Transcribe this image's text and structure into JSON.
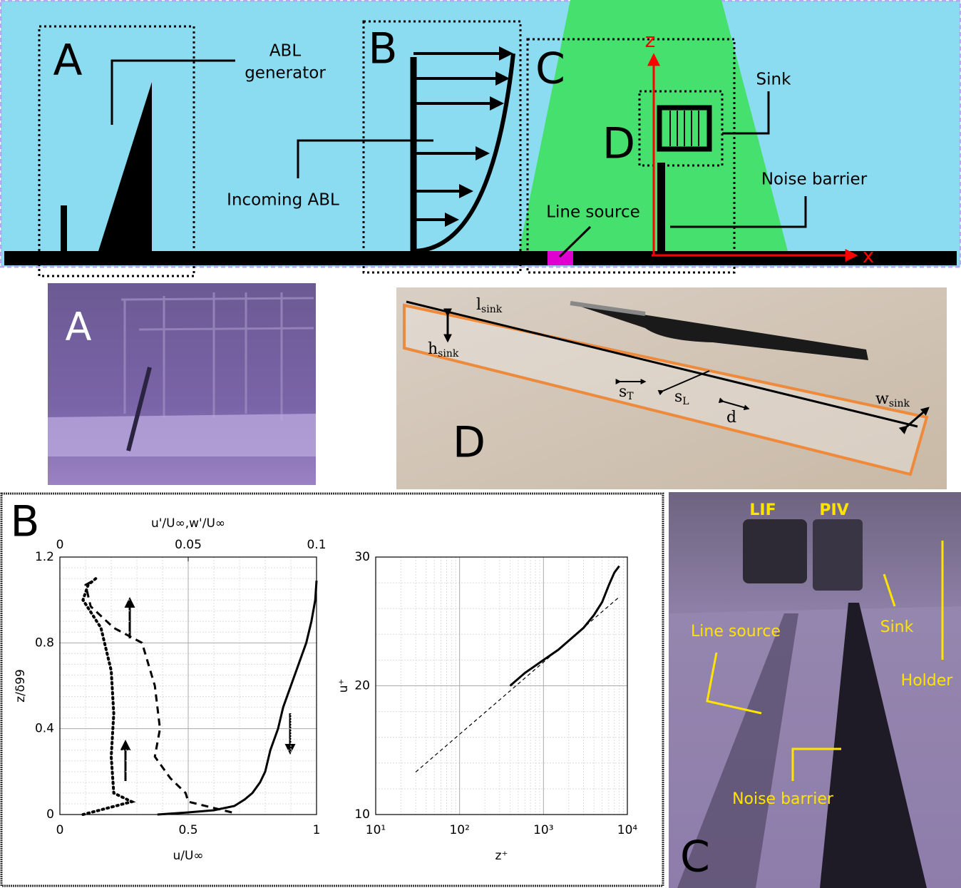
{
  "schematic": {
    "labels": {
      "a": "A",
      "b": "B",
      "c": "C",
      "d": "D"
    },
    "abl_generator": [
      "ABL",
      "generator"
    ],
    "incoming_abl": "Incoming ABL",
    "line_source": "Line source",
    "sink": "Sink",
    "noise_barrier": "Noise barrier",
    "axis_z": "z",
    "axis_x": "x"
  },
  "photo_a": {
    "label": "A"
  },
  "photo_d": {
    "label": "D",
    "l_sink": {
      "main": "l",
      "sub": "sink"
    },
    "h_sink": {
      "main": "h",
      "sub": "sink"
    },
    "s_t": {
      "main": "s",
      "sub": "T"
    },
    "s_l": {
      "main": "s",
      "sub": "L"
    },
    "d": "d",
    "w_sink": {
      "main": "w",
      "sub": "sink"
    }
  },
  "panel_b": {
    "label": "B"
  },
  "chart_data": [
    {
      "type": "line",
      "xlabel": "u/U∞",
      "x2label": "u'/U∞,w'/U∞",
      "ylabel": "z/δ99",
      "xlim": [
        0,
        1
      ],
      "xticks": [
        0,
        0.5,
        1
      ],
      "x2lim": [
        0,
        0.1
      ],
      "x2ticks": [
        0,
        0.05,
        0.1
      ],
      "ylim": [
        0,
        1.2
      ],
      "yticks": [
        0,
        0.4,
        0.8,
        1.2
      ],
      "grid": true,
      "minor_grid": true,
      "series": [
        {
          "color": "#000000",
          "style": "solid",
          "x": [
            0.38,
            0.5,
            0.6,
            0.68,
            0.72,
            0.75,
            0.78,
            0.8,
            0.82,
            0.85,
            0.87,
            0.9,
            0.93,
            0.96,
            0.98,
            0.995,
            1.0
          ],
          "values": [
            0,
            0.01,
            0.02,
            0.04,
            0.07,
            0.1,
            0.15,
            0.2,
            0.3,
            0.4,
            0.5,
            0.6,
            0.7,
            0.8,
            0.9,
            1.0,
            1.09
          ]
        },
        {
          "color": "#000000",
          "style": "dashed",
          "axis": "x2",
          "x": [
            0.067,
            0.05,
            0.049,
            0.043,
            0.037,
            0.039,
            0.037,
            0.032,
            0.021,
            0.012,
            0.01,
            0.013
          ],
          "values": [
            0.01,
            0.06,
            0.1,
            0.17,
            0.27,
            0.4,
            0.6,
            0.8,
            0.87,
            0.97,
            1.07,
            1.09
          ]
        },
        {
          "color": "#000000",
          "style": "dotted",
          "axis": "x2",
          "x": [
            0.009,
            0.028,
            0.021,
            0.02,
            0.021,
            0.02,
            0.016,
            0.009,
            0.011,
            0.014
          ],
          "values": [
            0,
            0.06,
            0.1,
            0.27,
            0.47,
            0.67,
            0.87,
            1.0,
            1.07,
            1.1
          ]
        }
      ]
    },
    {
      "type": "line",
      "xlabel": "z⁺",
      "ylabel": "u⁺",
      "xscale": "log",
      "xlim": [
        10,
        10000
      ],
      "xticks": [
        {
          "value": 10,
          "label": "10¹"
        },
        {
          "value": 100,
          "label": "10²"
        },
        {
          "value": 1000,
          "label": "10³"
        },
        {
          "value": 10000,
          "label": "10⁴"
        }
      ],
      "ylim": [
        10,
        30
      ],
      "yticks": [
        10,
        20,
        30
      ],
      "grid": true,
      "minor_grid": true,
      "series": [
        {
          "color": "#000000",
          "style": "solid",
          "x": [
            400,
            600,
            1000,
            1500,
            2000,
            3000,
            4000,
            5000,
            6000,
            7000,
            8000
          ],
          "values": [
            20,
            21,
            22,
            22.8,
            23.5,
            24.5,
            25.5,
            26.5,
            27.8,
            28.8,
            29.3
          ]
        },
        {
          "color": "#000000",
          "style": "thin-dashed",
          "x": [
            30,
            8000
          ],
          "values": [
            13.3,
            26.9
          ]
        }
      ]
    }
  ],
  "photo_c": {
    "lif": "LIF",
    "piv": "PIV",
    "line_source": "Line source",
    "sink": "Sink",
    "holder": "Holder",
    "noise_barrier": "Noise barrier",
    "label": "C"
  }
}
